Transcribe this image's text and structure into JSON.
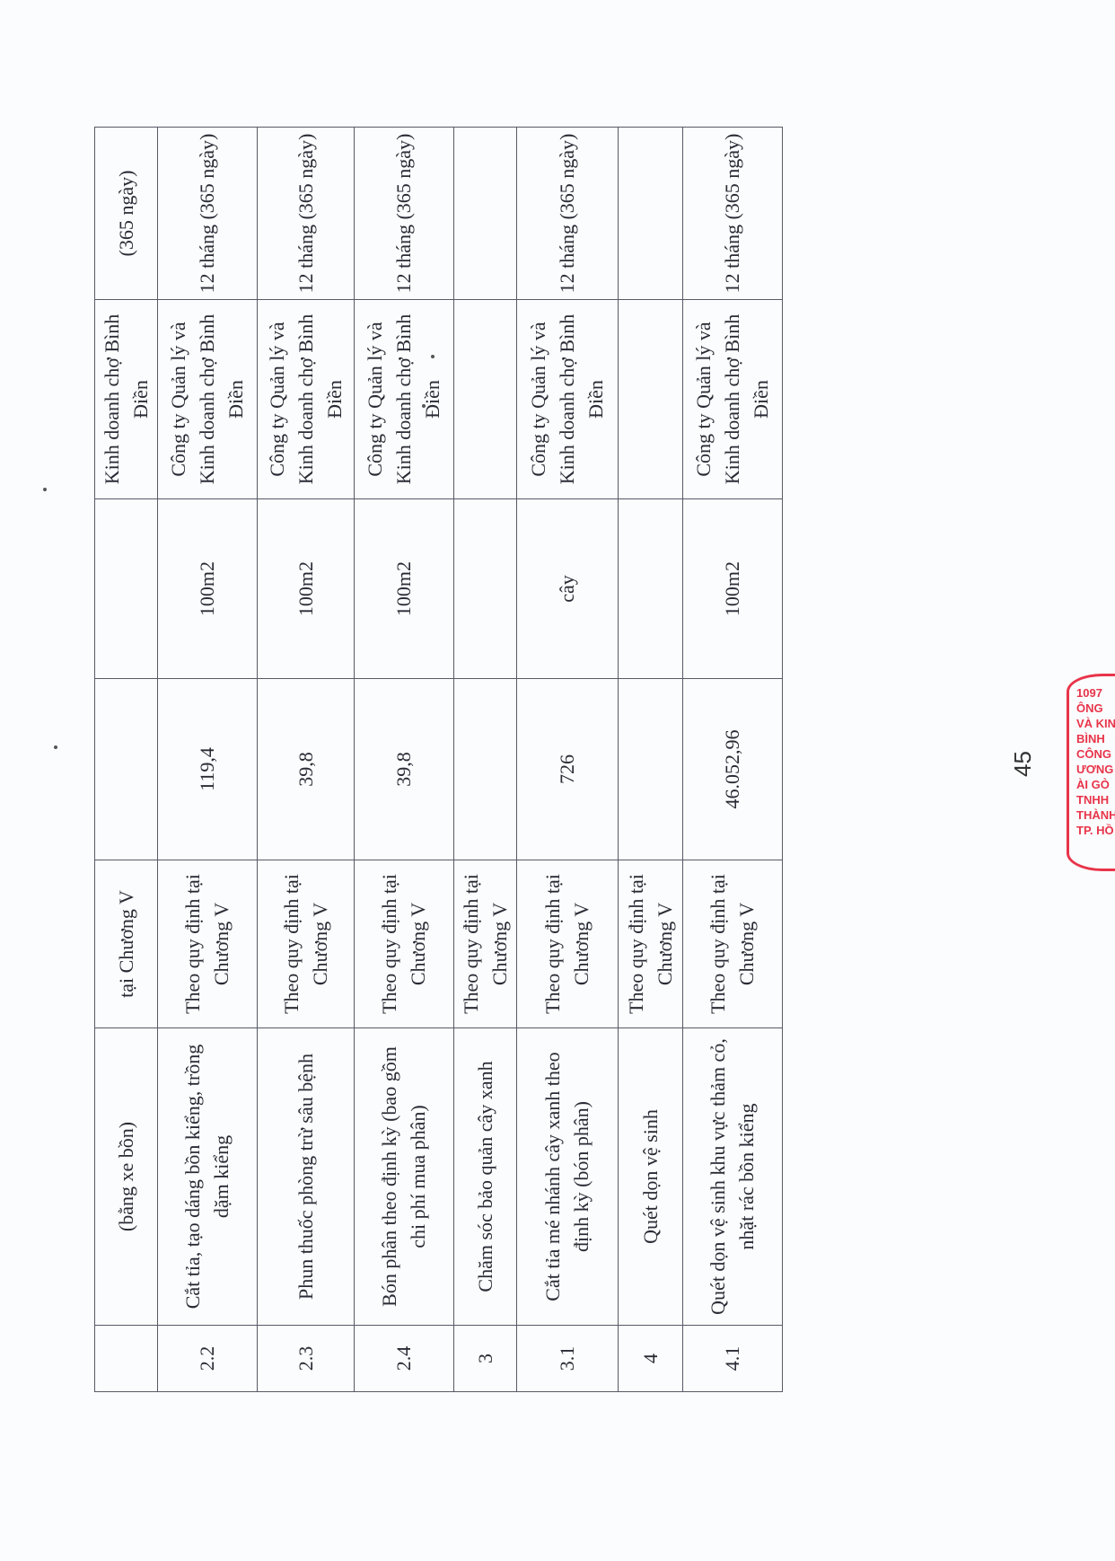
{
  "page_number": "45",
  "table": {
    "rows": [
      {
        "stt": "",
        "noi_dung": "(bằng xe bồn)",
        "quy_dinh": "tại Chương V",
        "khoi_luong": "",
        "don_vi": "",
        "don_vi_thuc_hien": "Kinh doanh chợ Bình Điền",
        "thoi_gian": "(365 ngày)"
      },
      {
        "stt": "2.2",
        "noi_dung": "Cắt tỉa, tạo dáng bồn kiểng, trồng dặm kiểng",
        "quy_dinh": "Theo quy định tại Chương V",
        "khoi_luong": "119,4",
        "don_vi": "100m2",
        "don_vi_thuc_hien": "Công ty Quản lý và Kinh doanh chợ Bình Điền",
        "thoi_gian": "12 tháng (365 ngày)"
      },
      {
        "stt": "2.3",
        "noi_dung": "Phun thuốc phòng trừ sâu bệnh",
        "quy_dinh": "Theo quy định tại Chương V",
        "khoi_luong": "39,8",
        "don_vi": "100m2",
        "don_vi_thuc_hien": "Công ty Quản lý và Kinh doanh chợ Bình Điền",
        "thoi_gian": "12 tháng (365 ngày)"
      },
      {
        "stt": "2.4",
        "noi_dung": "Bón phân theo định kỳ (bao gồm chi phí mua phân)",
        "quy_dinh": "Theo quy định tại Chương V",
        "khoi_luong": "39,8",
        "don_vi": "100m2",
        "don_vi_thuc_hien": "Công ty Quản lý và Kinh doanh chợ Bình Điền",
        "thoi_gian": "12 tháng (365 ngày)"
      },
      {
        "stt": "3",
        "noi_dung": "Chăm sóc bảo quản cây xanh",
        "quy_dinh": "Theo quy định tại Chương V",
        "khoi_luong": "",
        "don_vi": "",
        "don_vi_thuc_hien": "",
        "thoi_gian": ""
      },
      {
        "stt": "3.1",
        "noi_dung": "Cắt tỉa mé nhánh cây xanh theo định kỳ (bón phân)",
        "quy_dinh": "Theo quy định tại Chương V",
        "khoi_luong": "726",
        "don_vi": "cây",
        "don_vi_thuc_hien": "Công ty Quản lý và Kinh doanh chợ Bình Điền",
        "thoi_gian": "12 tháng (365 ngày)"
      },
      {
        "stt": "4",
        "noi_dung": "Quét dọn vệ sinh",
        "quy_dinh": "Theo quy định tại Chương V",
        "khoi_luong": "",
        "don_vi": "",
        "don_vi_thuc_hien": "",
        "thoi_gian": ""
      },
      {
        "stt": "4.1",
        "noi_dung": "Quét dọn vệ sinh khu vực thảm cỏ, nhặt rác bồn kiểng",
        "quy_dinh": "Theo quy định tại Chương V",
        "khoi_luong": "46.052,96",
        "don_vi": "100m2",
        "don_vi_thuc_hien": "Công ty Quản lý và Kinh doanh chợ Bình Điền",
        "thoi_gian": "12 tháng (365 ngày)"
      }
    ]
  },
  "stamp": {
    "lines": [
      "1097",
      "ÔNG",
      "VÀ KINH",
      "BÌNH",
      "CÔNG",
      "ƯƠNG",
      "ÀI GÒ",
      "TNHH",
      "THÀNH V",
      "TP. HỒ"
    ],
    "color": "#e8344a"
  }
}
